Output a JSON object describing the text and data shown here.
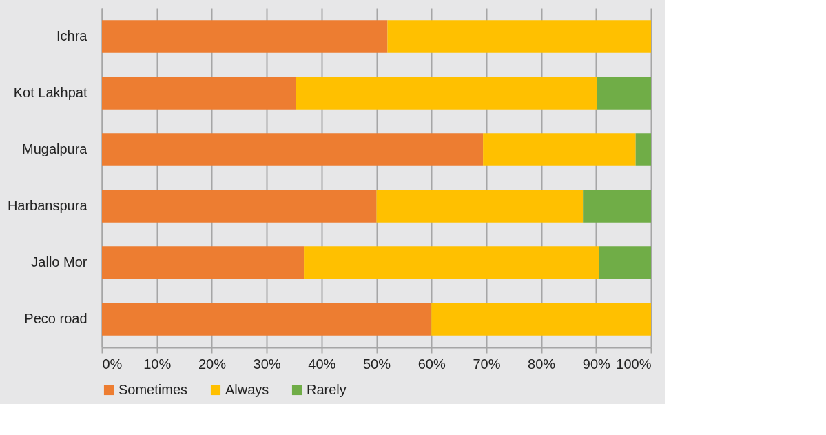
{
  "chart_data": {
    "type": "bar",
    "orientation": "horizontal",
    "stacked": true,
    "categories": [
      "Ichra",
      "Kot Lakhpat",
      "Mugalpura",
      "Harbanspura",
      "Jallo Mor",
      "Peco road"
    ],
    "series": [
      {
        "name": "Sometimes",
        "color": "#ed7d31",
        "values": [
          52,
          35.3,
          69.4,
          50,
          36.9,
          60
        ]
      },
      {
        "name": "Always",
        "color": "#ffc000",
        "values": [
          48,
          54.9,
          27.8,
          37.6,
          53.6,
          40
        ]
      },
      {
        "name": "Rarely",
        "color": "#70ad47",
        "values": [
          null,
          9.8,
          2.8,
          12.4,
          9.5,
          null
        ]
      }
    ],
    "xlim": [
      0,
      100
    ],
    "xticks": [
      {
        "value": 0,
        "label": "0%"
      },
      {
        "value": 10,
        "label": "10%"
      },
      {
        "value": 20,
        "label": "20%"
      },
      {
        "value": 30,
        "label": "30%"
      },
      {
        "value": 40,
        "label": "40%"
      },
      {
        "value": 50,
        "label": "50%"
      },
      {
        "value": 60,
        "label": "60%"
      },
      {
        "value": 70,
        "label": "70%"
      },
      {
        "value": 80,
        "label": "80%"
      },
      {
        "value": 90,
        "label": "90%"
      },
      {
        "value": 100,
        "label": "100%"
      }
    ],
    "grid": "x",
    "legend": "bottom"
  }
}
